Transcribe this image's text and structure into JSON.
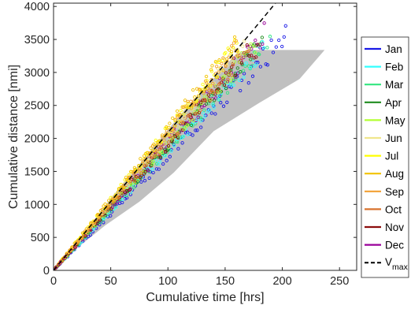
{
  "chart_data": {
    "type": "scatter",
    "xlabel": "Cumulative time [hrs]",
    "ylabel": "Cumulative distance [nmi]",
    "xlim": [
      0,
      265
    ],
    "ylim": [
      0,
      4050
    ],
    "xticks": [
      0,
      50,
      100,
      150,
      200,
      250
    ],
    "yticks": [
      0,
      500,
      1000,
      1500,
      2000,
      2500,
      3000,
      3500,
      4000
    ],
    "grid": false,
    "legend_position": "right",
    "envelope": {
      "color": "#c0c0c0",
      "upper": [
        [
          0,
          0
        ],
        [
          20,
          420
        ],
        [
          50,
          1090
        ],
        [
          80,
          1710
        ],
        [
          110,
          2340
        ],
        [
          140,
          2910
        ],
        [
          160,
          3290
        ],
        [
          175,
          3340
        ],
        [
          237,
          3340
        ]
      ],
      "lower": [
        [
          237,
          3340
        ],
        [
          215,
          2900
        ],
        [
          180,
          2540
        ],
        [
          140,
          2110
        ],
        [
          105,
          1480
        ],
        [
          75,
          1040
        ],
        [
          45,
          680
        ],
        [
          20,
          330
        ],
        [
          0,
          0
        ]
      ]
    },
    "series": [
      {
        "name": "Jan",
        "color": "#1a1ae6",
        "end": [
          205,
          3590
        ],
        "spread": 0.05
      },
      {
        "name": "Feb",
        "color": "#33ffff",
        "end": [
          185,
          3380
        ],
        "spread": 0.04
      },
      {
        "name": "Mar",
        "color": "#33e680",
        "end": [
          190,
          3500
        ],
        "spread": 0.04
      },
      {
        "name": "Apr",
        "color": "#1f8c1f",
        "end": [
          183,
          3480
        ],
        "spread": 0.04
      },
      {
        "name": "May",
        "color": "#b3ff33",
        "end": [
          178,
          3440
        ],
        "spread": 0.04
      },
      {
        "name": "Jun",
        "color": "#f0e68c",
        "end": [
          168,
          3480
        ],
        "spread": 0.04
      },
      {
        "name": "Jul",
        "color": "#ffff00",
        "end": [
          163,
          3470
        ],
        "spread": 0.04
      },
      {
        "name": "Aug",
        "color": "#f2c200",
        "end": [
          160,
          3420
        ],
        "spread": 0.05
      },
      {
        "name": "Sep",
        "color": "#f2a033",
        "end": [
          162,
          3380
        ],
        "spread": 0.05
      },
      {
        "name": "Oct",
        "color": "#d9732e",
        "end": [
          172,
          3420
        ],
        "spread": 0.05
      },
      {
        "name": "Nov",
        "color": "#8c0d0d",
        "end": [
          180,
          3460
        ],
        "spread": 0.05
      },
      {
        "name": "Dec",
        "color": "#990099",
        "end": [
          185,
          3570
        ],
        "spread": 0.06
      }
    ],
    "vmax": {
      "label": "V",
      "subscript": "max",
      "color": "#000000",
      "line": [
        [
          0,
          0
        ],
        [
          194,
          4050
        ]
      ]
    }
  }
}
